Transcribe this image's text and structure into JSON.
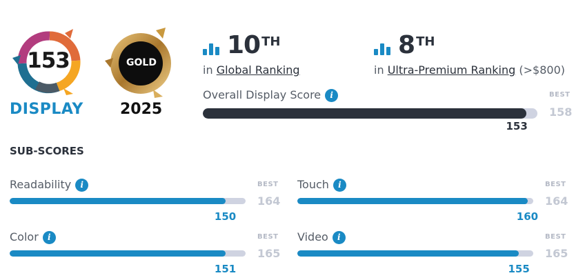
{
  "badge": {
    "score": "153",
    "caption": "DISPLAY"
  },
  "award": {
    "label": "GOLD",
    "year": "2025"
  },
  "global_rank": {
    "number": "10",
    "suffix": "TH",
    "prefix": "in",
    "link": "Global Ranking"
  },
  "segment_rank": {
    "number": "8",
    "suffix": "TH",
    "prefix": "in",
    "link": "Ultra-Premium Ranking",
    "note": "(>$800)"
  },
  "overall": {
    "label": "Overall Display Score",
    "best_label": "BEST",
    "best": "158",
    "value": "153",
    "fraction": 0.968
  },
  "subscores": {
    "title": "SUB-SCORES",
    "items": [
      {
        "label": "Readability",
        "best_label": "BEST",
        "best": "164",
        "value": "150",
        "fraction": 0.915
      },
      {
        "label": "Touch",
        "best_label": "BEST",
        "best": "164",
        "value": "160",
        "fraction": 0.976
      },
      {
        "label": "Color",
        "best_label": "BEST",
        "best": "165",
        "value": "151",
        "fraction": 0.915
      },
      {
        "label": "Video",
        "best_label": "BEST",
        "best": "165",
        "value": "155",
        "fraction": 0.94
      }
    ]
  },
  "info_icon": "info-icon",
  "colors": {
    "accent": "#1a8ac4",
    "dark": "#2b313b",
    "track": "#cfd3e1",
    "gold": "#c9993f"
  }
}
